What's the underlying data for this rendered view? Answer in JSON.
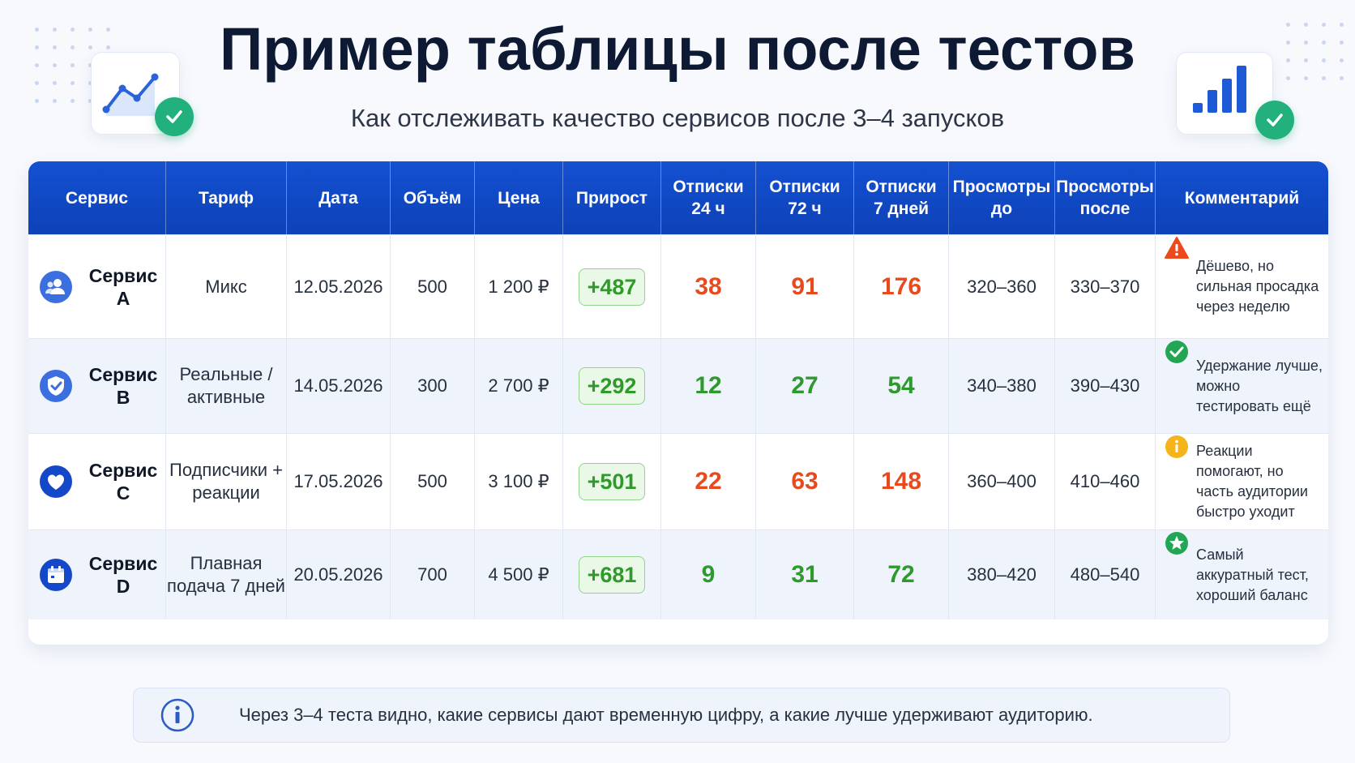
{
  "header": {
    "title": "Пример таблицы после тестов",
    "subtitle": "Как отслеживать качество сервисов после 3–4 запусков",
    "left_icon": "line-chart-icon",
    "right_icon": "bar-chart-icon",
    "badge_icon": "check-icon"
  },
  "colors": {
    "header_blue": "#1450d0",
    "red_value": "#e84a1e",
    "green_value": "#2e9a2e",
    "growth_bg": "#eaf8e8",
    "check_green": "#22b07d"
  },
  "table": {
    "columns": [
      "Сервис",
      "Тариф",
      "Дата",
      "Объём",
      "Цена",
      "Прирост",
      "Отписки\n24 ч",
      "Отписки\n72 ч",
      "Отписки\n7 дней",
      "Просмотры\nдо",
      "Просмотры\nпосле",
      "Комментарий"
    ],
    "rows": [
      {
        "service": "Сервис A",
        "service_icon": "users-icon",
        "tariff": "Микс",
        "date": "12.05.2026",
        "volume": "500",
        "price": "1 200 ₽",
        "growth": "+487",
        "unsub_24": "38",
        "unsub_72": "91",
        "unsub_7d": "176",
        "unsub_colors": [
          "red",
          "red",
          "red"
        ],
        "views_before": "320–360",
        "views_after": "330–370",
        "comment": "Дёшево, но сильная просадка через неделю",
        "comment_icon": "warning-icon"
      },
      {
        "service": "Сервис B",
        "service_icon": "shield-check-icon",
        "tariff": "Реальные / активные",
        "date": "14.05.2026",
        "volume": "300",
        "price": "2 700 ₽",
        "growth": "+292",
        "unsub_24": "12",
        "unsub_72": "27",
        "unsub_7d": "54",
        "unsub_colors": [
          "green",
          "green",
          "green"
        ],
        "views_before": "340–380",
        "views_after": "390–430",
        "comment": "Удержание лучше, можно тестировать ещё",
        "comment_icon": "check-circle-icon"
      },
      {
        "service": "Сервис C",
        "service_icon": "heart-icon",
        "tariff": "Подписчики + реакции",
        "date": "17.05.2026",
        "volume": "500",
        "price": "3 100 ₽",
        "growth": "+501",
        "unsub_24": "22",
        "unsub_72": "63",
        "unsub_7d": "148",
        "unsub_colors": [
          "red",
          "red",
          "red"
        ],
        "views_before": "360–400",
        "views_after": "410–460",
        "comment": "Реакции помогают, но часть аудитории быстро уходит",
        "comment_icon": "info-circle-icon"
      },
      {
        "service": "Сервис D",
        "service_icon": "calendar-icon",
        "tariff": "Плавная подача 7 дней",
        "date": "20.05.2026",
        "volume": "700",
        "price": "4 500 ₽",
        "growth": "+681",
        "unsub_24": "9",
        "unsub_72": "31",
        "unsub_7d": "72",
        "unsub_colors": [
          "green",
          "green",
          "green"
        ],
        "views_before": "380–420",
        "views_after": "480–540",
        "comment": "Самый аккуратный тест, хороший баланс",
        "comment_icon": "star-circle-icon"
      }
    ]
  },
  "footer_note": {
    "icon": "info-icon",
    "text": "Через 3–4 теста видно, какие сервисы дают временную цифру, а какие лучше удерживают аудиторию."
  }
}
